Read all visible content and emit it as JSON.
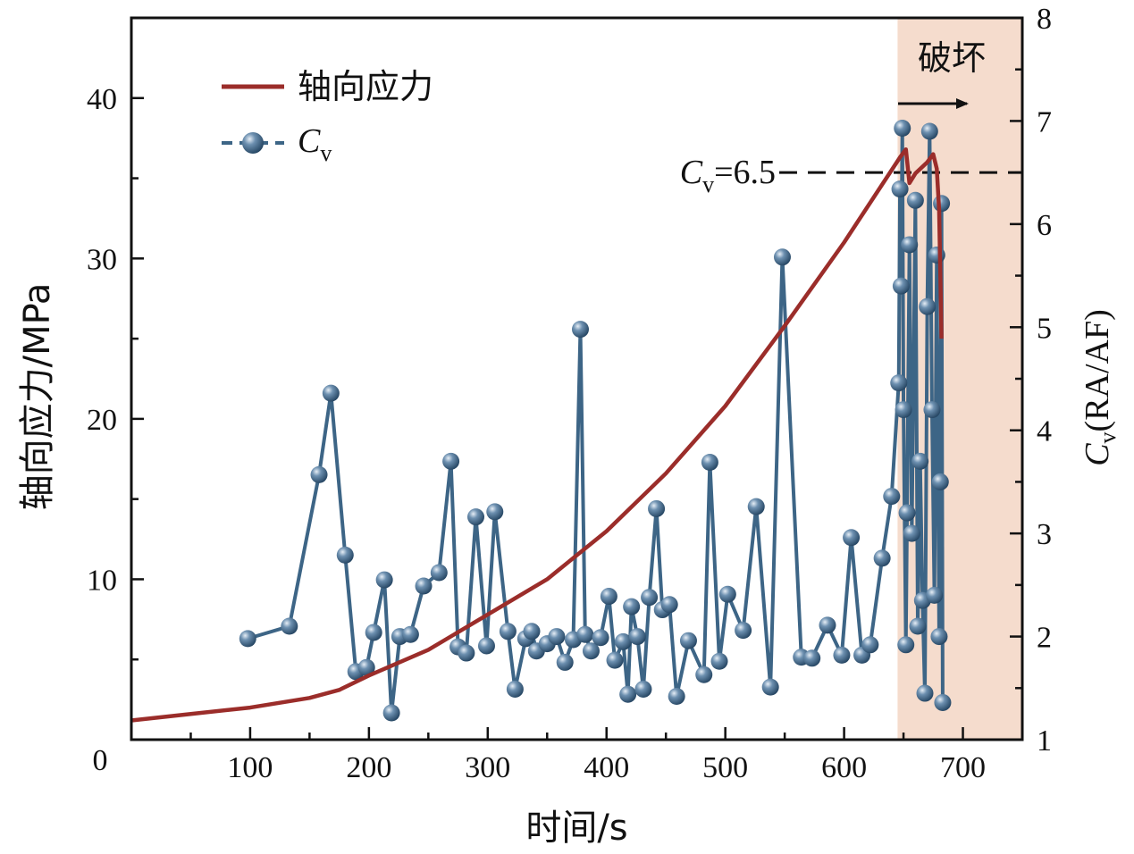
{
  "chart_data": {
    "type": "line",
    "x": {
      "label": "时间/s",
      "ticks": [
        100,
        200,
        300,
        400,
        500,
        600,
        700
      ],
      "range": [
        0,
        750
      ],
      "origin_label": "0"
    },
    "y_left": {
      "label": "轴向应力/MPa",
      "ticks": [
        10,
        20,
        30,
        40
      ],
      "range": [
        0,
        45
      ]
    },
    "y_right": {
      "label_main": "C",
      "label_sub": "v",
      "label_tail": "(RA/AF)",
      "ticks": [
        1,
        2,
        3,
        4,
        5,
        6,
        7,
        8
      ],
      "range": [
        1,
        8
      ]
    },
    "legend": {
      "position": "top-left",
      "stress_label": "轴向应力",
      "cv_label_main": "C",
      "cv_label_sub": "v"
    },
    "failure_zone": {
      "label": "破坏",
      "x_start": 645,
      "color": "#f5dccd"
    },
    "threshold": {
      "value": 6.5,
      "label_main": "C",
      "label_sub": "v",
      "label_tail": "=6.5"
    },
    "colors": {
      "stress": "#9b2d2a",
      "cv": "#3d6586",
      "marker_fill": "#3d6586",
      "marker_highlight": "#c9d9e8"
    },
    "series": [
      {
        "name": "轴向应力",
        "axis": "left",
        "points": [
          [
            0,
            1.2
          ],
          [
            50,
            1.6
          ],
          [
            100,
            2.0
          ],
          [
            150,
            2.6
          ],
          [
            175,
            3.1
          ],
          [
            200,
            4.0
          ],
          [
            250,
            5.6
          ],
          [
            300,
            7.8
          ],
          [
            350,
            10.0
          ],
          [
            400,
            13.0
          ],
          [
            450,
            16.6
          ],
          [
            500,
            20.8
          ],
          [
            550,
            25.8
          ],
          [
            600,
            31.0
          ],
          [
            647,
            36.3
          ],
          [
            652,
            36.8
          ],
          [
            655,
            34.7
          ],
          [
            660,
            35.3
          ],
          [
            670,
            36.0
          ],
          [
            675,
            36.5
          ],
          [
            678,
            35.6
          ],
          [
            680,
            33.0
          ],
          [
            681,
            29.0
          ],
          [
            682,
            25.0
          ]
        ]
      },
      {
        "name": "Cv",
        "axis": "right",
        "points": [
          [
            98,
            1.98
          ],
          [
            133,
            2.1
          ],
          [
            158,
            3.57
          ],
          [
            168,
            4.36
          ],
          [
            180,
            2.79
          ],
          [
            189,
            1.66
          ],
          [
            198,
            1.7
          ],
          [
            204,
            2.04
          ],
          [
            213,
            2.55
          ],
          [
            219,
            1.26
          ],
          [
            226,
            2.0
          ],
          [
            235,
            2.02
          ],
          [
            246,
            2.49
          ],
          [
            259,
            2.62
          ],
          [
            269,
            3.7
          ],
          [
            275,
            1.9
          ],
          [
            282,
            1.84
          ],
          [
            290,
            3.16
          ],
          [
            299,
            1.91
          ],
          [
            306,
            3.21
          ],
          [
            317,
            2.05
          ],
          [
            323,
            1.49
          ],
          [
            332,
            1.98
          ],
          [
            337,
            2.05
          ],
          [
            341,
            1.86
          ],
          [
            350,
            1.93
          ],
          [
            358,
            2.0
          ],
          [
            365,
            1.75
          ],
          [
            372,
            1.97
          ],
          [
            378,
            4.98
          ],
          [
            382,
            2.02
          ],
          [
            387,
            1.86
          ],
          [
            395,
            1.99
          ],
          [
            402,
            2.39
          ],
          [
            407,
            1.77
          ],
          [
            414,
            1.95
          ],
          [
            418,
            1.44
          ],
          [
            421,
            2.29
          ],
          [
            426,
            2.0
          ],
          [
            431,
            1.49
          ],
          [
            436,
            2.38
          ],
          [
            442,
            3.24
          ],
          [
            447,
            2.26
          ],
          [
            453,
            2.31
          ],
          [
            459,
            1.42
          ],
          [
            469,
            1.96
          ],
          [
            482,
            1.63
          ],
          [
            487,
            3.69
          ],
          [
            495,
            1.76
          ],
          [
            502,
            2.41
          ],
          [
            515,
            2.06
          ],
          [
            526,
            3.26
          ],
          [
            538,
            1.51
          ],
          [
            548,
            5.68
          ],
          [
            564,
            1.8
          ],
          [
            573,
            1.79
          ],
          [
            586,
            2.11
          ],
          [
            598,
            1.82
          ],
          [
            606,
            2.96
          ],
          [
            615,
            1.82
          ],
          [
            622,
            1.92
          ],
          [
            632,
            2.76
          ],
          [
            640,
            3.36
          ],
          [
            646,
            4.46
          ],
          [
            647,
            6.34
          ],
          [
            648,
            5.4
          ],
          [
            649,
            6.93
          ],
          [
            650,
            4.2
          ],
          [
            652,
            1.92
          ],
          [
            653,
            3.2
          ],
          [
            655,
            5.8
          ],
          [
            657,
            3.0
          ],
          [
            660,
            6.23
          ],
          [
            662,
            2.1
          ],
          [
            664,
            3.7
          ],
          [
            666,
            2.35
          ],
          [
            668,
            1.45
          ],
          [
            670,
            5.2
          ],
          [
            672,
            6.9
          ],
          [
            674,
            4.2
          ],
          [
            676,
            2.4
          ],
          [
            678,
            5.7
          ],
          [
            680,
            2.0
          ],
          [
            681,
            3.5
          ],
          [
            682,
            6.2
          ],
          [
            683,
            1.36
          ]
        ]
      }
    ]
  }
}
